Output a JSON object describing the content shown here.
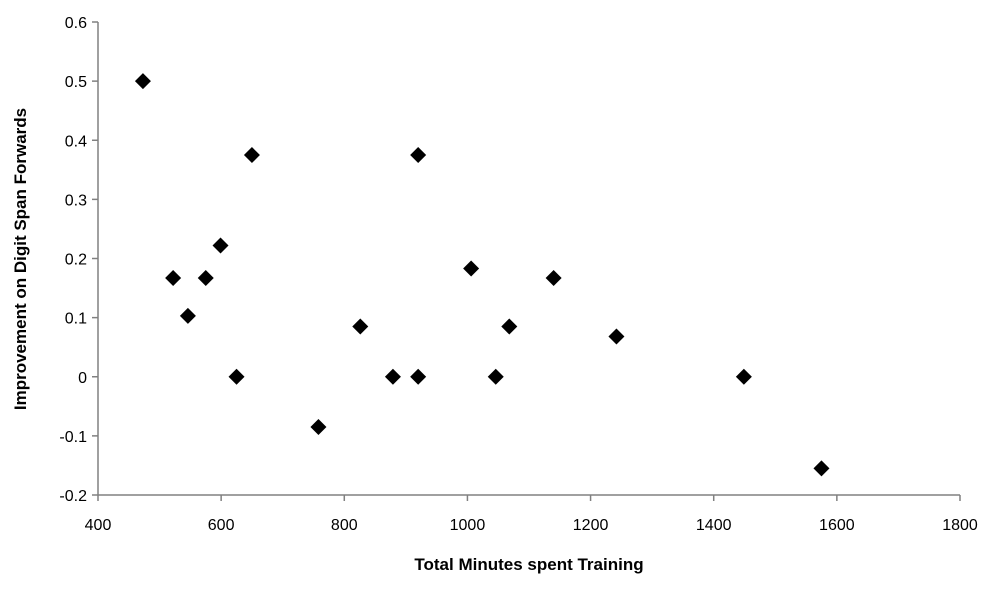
{
  "chart_data": {
    "type": "scatter",
    "title": "",
    "xlabel": "Total Minutes spent Training",
    "ylabel": "Improvement on Digit Span Forwards",
    "xlim": [
      400,
      1800
    ],
    "ylim": [
      -0.2,
      0.6
    ],
    "xticks": [
      400,
      600,
      800,
      1000,
      1200,
      1400,
      1600,
      1800
    ],
    "yticks": [
      -0.2,
      -0.1,
      0,
      0.1,
      0.2,
      0.3,
      0.4,
      0.5,
      0.6
    ],
    "xtick_labels": [
      "400",
      "600",
      "800",
      "1000",
      "1200",
      "1400",
      "1600",
      "1800"
    ],
    "ytick_labels": [
      "-0.2",
      "-0.1",
      "0",
      "0.1",
      "0.2",
      "0.3",
      "0.4",
      "0.5",
      "0.6"
    ],
    "grid": false,
    "legend": "none",
    "marker": "diamond",
    "marker_color": "#000000",
    "points": [
      {
        "x": 473,
        "y": 0.5
      },
      {
        "x": 522,
        "y": 0.167
      },
      {
        "x": 546,
        "y": 0.103
      },
      {
        "x": 575,
        "y": 0.167
      },
      {
        "x": 599,
        "y": 0.222
      },
      {
        "x": 625,
        "y": 0.0
      },
      {
        "x": 650,
        "y": 0.375
      },
      {
        "x": 758,
        "y": -0.085
      },
      {
        "x": 826,
        "y": 0.085
      },
      {
        "x": 879,
        "y": 0.0
      },
      {
        "x": 920,
        "y": 0.375
      },
      {
        "x": 920,
        "y": 0.0
      },
      {
        "x": 1006,
        "y": 0.183
      },
      {
        "x": 1046,
        "y": 0.0
      },
      {
        "x": 1068,
        "y": 0.085
      },
      {
        "x": 1140,
        "y": 0.167
      },
      {
        "x": 1242,
        "y": 0.068
      },
      {
        "x": 1449,
        "y": 0.0
      },
      {
        "x": 1575,
        "y": -0.155
      }
    ]
  }
}
